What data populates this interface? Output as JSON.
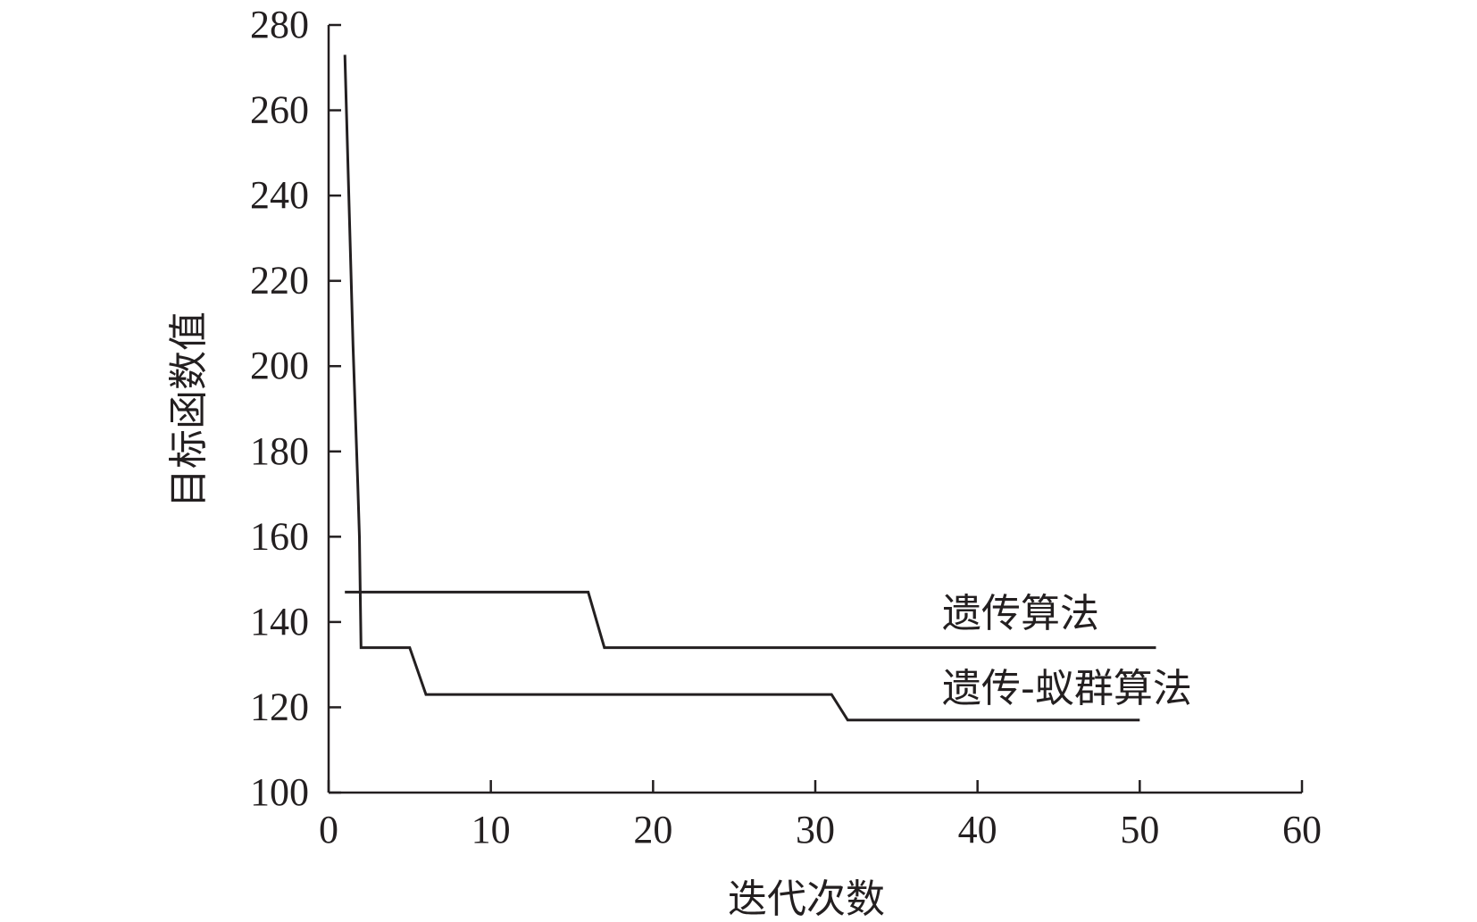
{
  "chart_data": {
    "type": "line",
    "xlabel": "迭代次数",
    "ylabel": "目标函数值",
    "xlim": [
      0,
      60
    ],
    "ylim": [
      100,
      280
    ],
    "xticks": [
      0,
      10,
      20,
      30,
      40,
      50,
      60
    ],
    "yticks": [
      100,
      120,
      140,
      160,
      180,
      200,
      220,
      240,
      260,
      280
    ],
    "grid": false,
    "series": [
      {
        "name": "遗传算法",
        "x": [
          1,
          16,
          17,
          51
        ],
        "y": [
          147,
          147,
          134,
          134
        ]
      },
      {
        "name": "遗传-蚁群算法",
        "x": [
          1,
          1.5,
          1.8,
          1.9,
          2,
          5,
          6,
          31,
          32,
          50
        ],
        "y": [
          273,
          205,
          172,
          160,
          134,
          134,
          123,
          123,
          117,
          117
        ]
      }
    ]
  }
}
